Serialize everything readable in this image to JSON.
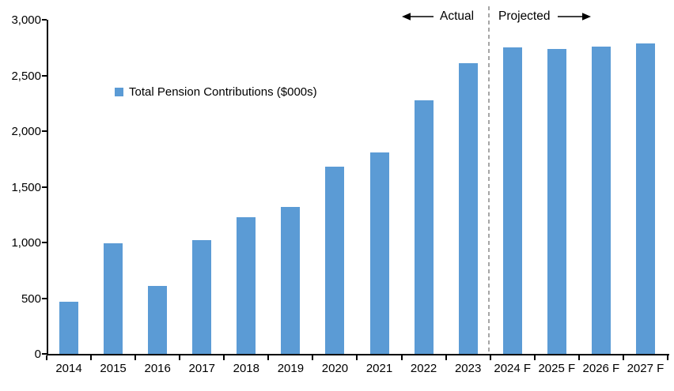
{
  "chart_data": {
    "type": "bar",
    "title": "",
    "categories": [
      "2014",
      "2015",
      "2016",
      "2017",
      "2018",
      "2019",
      "2020",
      "2021",
      "2022",
      "2023",
      "2024 F",
      "2025 F",
      "2026 F",
      "2027 F"
    ],
    "series": [
      {
        "name": "Total Pension Contributions ($000s)",
        "values": [
          470,
          990,
          610,
          1020,
          1230,
          1320,
          1680,
          1810,
          2280,
          2610,
          2750,
          2740,
          2760,
          2790
        ],
        "color": "#5B9BD5"
      }
    ],
    "xlabel": "",
    "ylabel": "",
    "ylim": [
      0,
      3000
    ],
    "ytick_step": 500,
    "ytick_labels": [
      "0",
      "500",
      "1,000",
      "1,500",
      "2,000",
      "2,500",
      "3,000"
    ],
    "grid": false,
    "legend_position": "inside-upper-left",
    "annotations": {
      "actual_label": "Actual",
      "projected_label": "Projected",
      "divider_between": [
        "2023",
        "2024 F"
      ]
    }
  },
  "legend": {
    "label": "Total Pension Contributions ($000s)",
    "marker_color": "#5B9BD5"
  },
  "icons": {
    "actual_direction": "left-arrow-icon",
    "projected_direction": "right-arrow-icon",
    "legend_marker": "square-icon"
  },
  "colors": {
    "bar": "#5B9BD5",
    "divider": "#A6A6A6",
    "axis": "#000000",
    "text": "#000000"
  }
}
